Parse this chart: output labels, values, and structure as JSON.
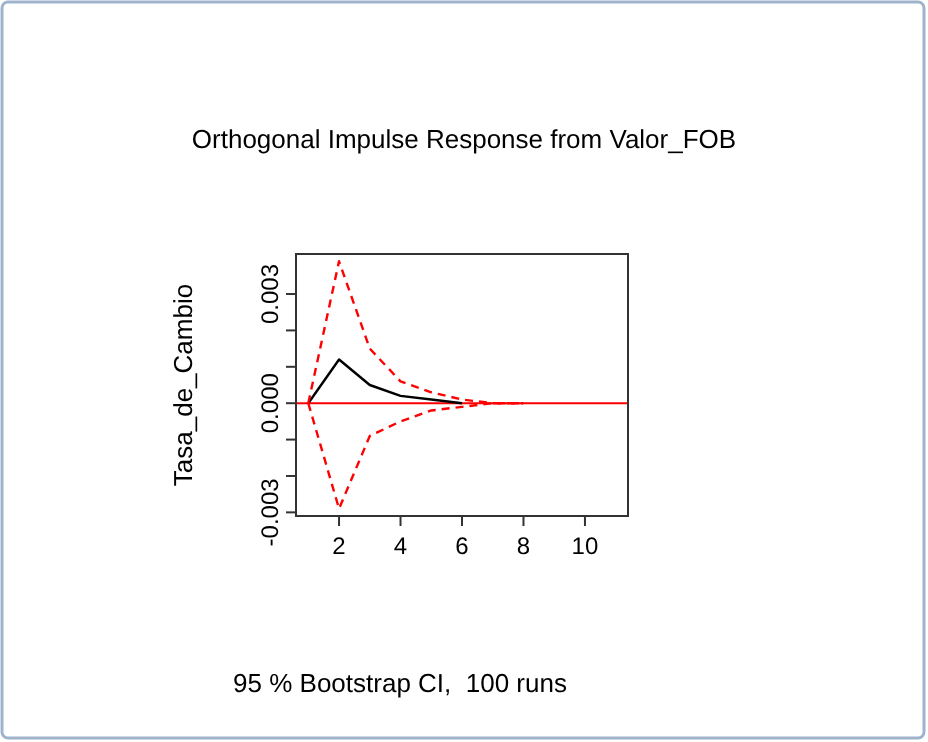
{
  "chart_data": {
    "type": "line",
    "title": "Orthogonal Impulse Response from Valor_FOB",
    "xlabel": "95 % Bootstrap CI,  100 runs",
    "ylabel": "Tasa_de_Cambio",
    "x": [
      1,
      2,
      3,
      4,
      5,
      6,
      7,
      8
    ],
    "series": [
      {
        "color": "#000000",
        "line_style": "solid",
        "values": [
          0,
          0.0012,
          0.0005,
          0.0002,
          0.0001,
          0,
          null,
          null
        ]
      },
      {
        "color": "#ff0000",
        "line_style": "dashed",
        "values": [
          0,
          0.0039,
          0.0015,
          0.0006,
          0.0003,
          0.0001,
          0,
          0
        ]
      },
      {
        "color": "#ff0000",
        "line_style": "dashed",
        "values": [
          0,
          -0.0029,
          -0.0009,
          -0.0005,
          -0.0002,
          -0.0001,
          0,
          0
        ]
      }
    ],
    "ref_lines": [
      {
        "axis": "y",
        "value": 0,
        "color": "#ff0000",
        "line_style": "solid"
      }
    ],
    "xlim": [
      0.6,
      11.4
    ],
    "ylim": [
      -0.0031,
      0.0041
    ],
    "xticks": [
      2,
      4,
      6,
      8,
      10
    ],
    "yticks": [
      {
        "value": -0.003,
        "label": "-0.003"
      },
      {
        "value": -0.002,
        "label": null
      },
      {
        "value": -0.001,
        "label": null
      },
      {
        "value": 0,
        "label": "0.000"
      },
      {
        "value": 0.001,
        "label": null
      },
      {
        "value": 0.002,
        "label": null
      },
      {
        "value": 0.003,
        "label": "0.003"
      }
    ]
  }
}
